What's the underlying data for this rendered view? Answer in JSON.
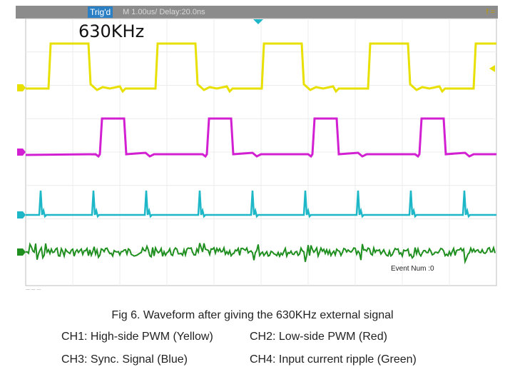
{
  "scope": {
    "status": {
      "trigger_badge": "Trig'd",
      "timebase_text": "M 1.00us/  Delay:20.0ns",
      "right_text": "f ="
    },
    "frequency_label": "630KHz",
    "event_counter": "Event Num :0",
    "channel_colors": {
      "ch1": "#e8e000",
      "ch2": "#d21fd2",
      "ch3": "#1eb7c7",
      "ch4": "#1f8f1f"
    }
  },
  "caption": {
    "title": "Fig 6. Waveform after giving the 630KHz external signal",
    "legend": [
      "CH1: High-side PWM (Yellow)",
      "CH2: Low-side PWM (Red)",
      "CH3: Sync. Signal (Blue)",
      "CH4: Input current ripple (Green)"
    ]
  }
}
